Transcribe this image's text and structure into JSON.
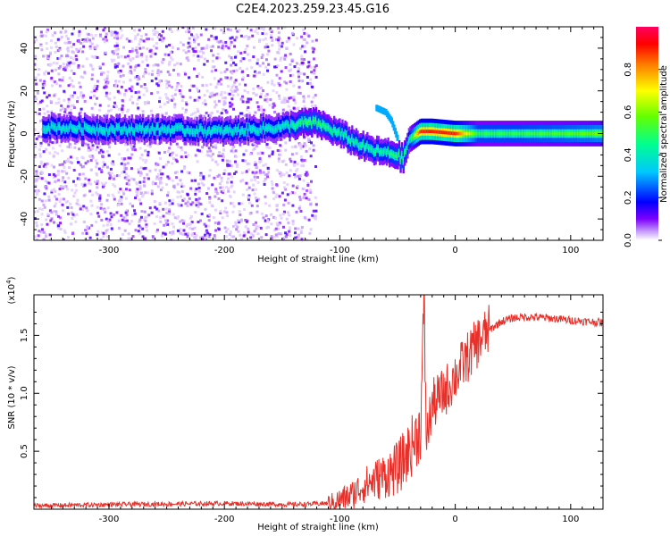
{
  "figure": {
    "title": "C2E4.2023.259.23.45.G16"
  },
  "chart_data": [
    {
      "type": "heatmap",
      "title": "C2E4.2023.259.23.45.G16",
      "xlabel": "Height of straight line (km)",
      "ylabel": "Frequency (Hz)",
      "xlim": [
        -365,
        128
      ],
      "ylim": [
        -50,
        50
      ],
      "x_ticks": [
        -300,
        -200,
        -100,
        0,
        100
      ],
      "y_ticks": [
        -40,
        -20,
        0,
        20,
        40
      ],
      "colorbar": {
        "label": "Normalized spectral amplitude",
        "range": [
          0,
          1
        ],
        "ticks": [
          "0.0",
          "0.2",
          "0.4",
          "0.6",
          "0.8"
        ],
        "colormap": [
          "#ffffff",
          "#7d00ff",
          "#0000ff",
          "#00c8ff",
          "#00ff80",
          "#64ff00",
          "#ffff00",
          "#ff8000",
          "#ff0000",
          "#ff0060"
        ]
      },
      "main_trace": {
        "x": [
          -355,
          -300,
          -250,
          -200,
          -150,
          -130,
          -120,
          -100,
          -90,
          -80,
          -70,
          -60,
          -50,
          -45,
          -40,
          -30,
          -20,
          0,
          20,
          50,
          100,
          128
        ],
        "y": [
          3,
          2,
          2,
          1,
          3,
          5,
          5,
          0,
          -3,
          -6,
          -8,
          -9,
          -10,
          -12,
          -3,
          1,
          1,
          0,
          0,
          0,
          0,
          0
        ],
        "amplitude": [
          0.4,
          0.4,
          0.4,
          0.4,
          0.4,
          0.5,
          0.5,
          0.45,
          0.45,
          0.45,
          0.45,
          0.45,
          0.5,
          0.5,
          0.4,
          0.9,
          0.9,
          0.9,
          0.5,
          0.5,
          0.55,
          0.6
        ]
      },
      "secondary_trace": {
        "x": [
          -68,
          -60,
          -55,
          -50
        ],
        "y": [
          12,
          10,
          6,
          -2
        ]
      },
      "noise_region_x": [
        -365,
        -120
      ]
    },
    {
      "type": "line",
      "xlabel": "Height of straight line (km)",
      "ylabel": "SNR (10 * v/v)",
      "y_scale_label": "(x10",
      "y_scale_exponent": "4",
      "xlim": [
        -365,
        128
      ],
      "ylim": [
        0,
        1.85
      ],
      "x_ticks": [
        -300,
        -200,
        -100,
        0,
        100
      ],
      "y_ticks": [
        "0.5",
        "1.0",
        "1.5"
      ],
      "line_color": "#e8302a",
      "series": [
        {
          "x": [
            -365,
            -300,
            -200,
            -140,
            -110,
            -100,
            -90,
            -80,
            -70,
            -60,
            -50,
            -40,
            -30,
            -27,
            -25,
            -20,
            -10,
            0,
            10,
            20,
            30,
            40,
            50,
            60,
            80,
            100,
            128
          ],
          "y": [
            0.03,
            0.04,
            0.05,
            0.04,
            0.05,
            0.08,
            0.12,
            0.2,
            0.25,
            0.3,
            0.35,
            0.5,
            0.7,
            1.8,
            0.6,
            0.9,
            1.0,
            1.15,
            1.3,
            1.45,
            1.55,
            1.62,
            1.65,
            1.66,
            1.65,
            1.63,
            1.61
          ]
        }
      ]
    }
  ]
}
